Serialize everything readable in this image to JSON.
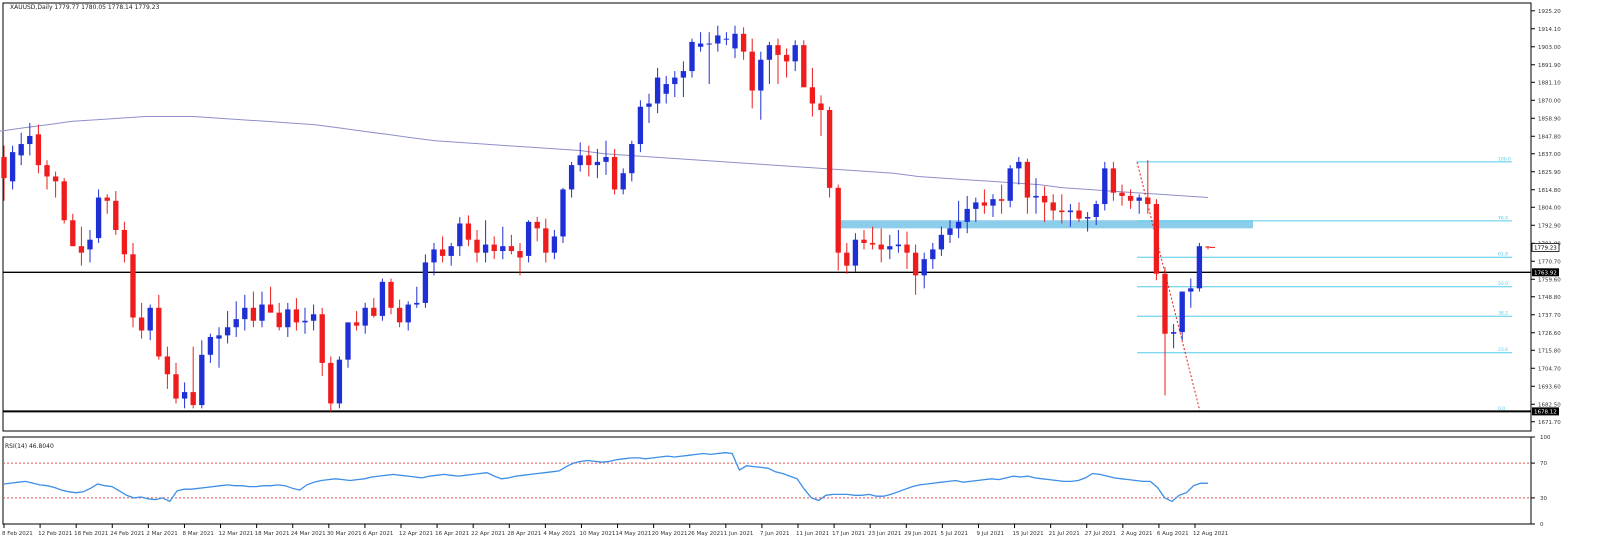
{
  "header": {
    "symbol_line": "XAUUSD,Daily  1779.77 1780.05 1778.14 1779.23",
    "rsi_label": "RSI(14) 46.8040"
  },
  "colors": {
    "bull": "#1f2fd6",
    "bear": "#ee1c1c",
    "ma": "#8f8fc9",
    "fib": "#55ccee",
    "zone": "#7ec8e8",
    "rsi_line": "#3c8ee8",
    "rsi_level": "#e05050",
    "grid_text": "#333333"
  },
  "chart_data": [
    {
      "type": "candlestick",
      "symbol": "XAUUSD",
      "timeframe": "Daily",
      "ohlc_readout": {
        "open": 1779.77,
        "high": 1780.05,
        "low": 1778.14,
        "close": 1779.23
      },
      "ylim": [
        1666.0,
        1930.0
      ],
      "y_ticks": [
        "1925.20",
        "1914.10",
        "1903.00",
        "1891.90",
        "1881.10",
        "1870.00",
        "1858.90",
        "1847.80",
        "1837.00",
        "1825.90",
        "1814.80",
        "1804.00",
        "1792.90",
        "1781.80",
        "1770.70",
        "1759.60",
        "1748.80",
        "1737.70",
        "1726.60",
        "1715.80",
        "1704.70",
        "1693.60",
        "1682.50",
        "1671.70"
      ],
      "x_ticks": [
        "8 Feb 2021",
        "12 Feb 2021",
        "18 Feb 2021",
        "24 Feb 2021",
        "2 Mar 2021",
        "8 Mar 2021",
        "12 Mar 2021",
        "18 Mar 2021",
        "24 Mar 2021",
        "30 Mar 2021",
        "6 Apr 2021",
        "12 Apr 2021",
        "16 Apr 2021",
        "22 Apr 2021",
        "28 Apr 2021",
        "4 May 2021",
        "10 May 2021",
        "14 May 2021",
        "20 May 2021",
        "26 May 2021",
        "1 Jun 2021",
        "7 Jun 2021",
        "11 Jun 2021",
        "17 Jun 2021",
        "23 Jun 2021",
        "29 Jun 2021",
        "5 Jul 2021",
        "9 Jul 2021",
        "15 Jul 2021",
        "21 Jul 2021",
        "27 Jul 2021",
        "2 Aug 2021",
        "6 Aug 2021",
        "12 Aug 2021"
      ],
      "candles": [
        [
          1835,
          1842,
          1808,
          1822
        ],
        [
          1820,
          1842,
          1815,
          1838
        ],
        [
          1836,
          1850,
          1830,
          1843
        ],
        [
          1843,
          1856,
          1836,
          1848
        ],
        [
          1849,
          1855,
          1825,
          1830
        ],
        [
          1830,
          1833,
          1815,
          1823
        ],
        [
          1823,
          1826,
          1810,
          1820
        ],
        [
          1820,
          1822,
          1794,
          1796
        ],
        [
          1796,
          1800,
          1780,
          1780
        ],
        [
          1780,
          1792,
          1768,
          1776
        ],
        [
          1778,
          1790,
          1770,
          1784
        ],
        [
          1785,
          1815,
          1782,
          1810
        ],
        [
          1810,
          1812,
          1800,
          1808
        ],
        [
          1808,
          1814,
          1787,
          1790
        ],
        [
          1790,
          1795,
          1770,
          1775
        ],
        [
          1775,
          1782,
          1730,
          1736
        ],
        [
          1736,
          1745,
          1723,
          1728
        ],
        [
          1728,
          1744,
          1722,
          1742
        ],
        [
          1742,
          1750,
          1710,
          1712
        ],
        [
          1712,
          1718,
          1692,
          1701
        ],
        [
          1701,
          1708,
          1683,
          1686
        ],
        [
          1686,
          1696,
          1680,
          1690
        ],
        [
          1690,
          1718,
          1680,
          1682
        ],
        [
          1682,
          1722,
          1680,
          1713
        ],
        [
          1713,
          1726,
          1708,
          1724
        ],
        [
          1723,
          1730,
          1705,
          1725
        ],
        [
          1725,
          1740,
          1720,
          1730
        ],
        [
          1730,
          1746,
          1724,
          1735
        ],
        [
          1735,
          1750,
          1728,
          1742
        ],
        [
          1742,
          1752,
          1730,
          1734
        ],
        [
          1734,
          1752,
          1730,
          1744
        ],
        [
          1744,
          1755,
          1740,
          1739
        ],
        [
          1739,
          1745,
          1728,
          1730
        ],
        [
          1730,
          1745,
          1724,
          1741
        ],
        [
          1741,
          1748,
          1728,
          1733
        ],
        [
          1733,
          1742,
          1726,
          1734
        ],
        [
          1734,
          1744,
          1728,
          1738
        ],
        [
          1738,
          1742,
          1700,
          1708
        ],
        [
          1708,
          1712,
          1678,
          1683
        ],
        [
          1683,
          1712,
          1680,
          1710
        ],
        [
          1710,
          1733,
          1705,
          1733
        ],
        [
          1733,
          1740,
          1728,
          1731
        ],
        [
          1731,
          1745,
          1726,
          1742
        ],
        [
          1742,
          1748,
          1736,
          1737
        ],
        [
          1737,
          1760,
          1734,
          1758
        ],
        [
          1758,
          1760,
          1738,
          1742
        ],
        [
          1742,
          1747,
          1730,
          1733
        ],
        [
          1733,
          1746,
          1728,
          1744
        ],
        [
          1744,
          1755,
          1742,
          1745
        ],
        [
          1745,
          1775,
          1742,
          1770
        ],
        [
          1770,
          1782,
          1762,
          1778
        ],
        [
          1778,
          1786,
          1770,
          1774
        ],
        [
          1774,
          1782,
          1768,
          1780
        ],
        [
          1780,
          1798,
          1774,
          1794
        ],
        [
          1794,
          1799,
          1780,
          1784
        ],
        [
          1784,
          1790,
          1770,
          1776
        ],
        [
          1776,
          1796,
          1770,
          1781
        ],
        [
          1781,
          1786,
          1772,
          1777
        ],
        [
          1777,
          1792,
          1772,
          1780
        ],
        [
          1780,
          1787,
          1775,
          1777
        ],
        [
          1777,
          1782,
          1762,
          1773
        ],
        [
          1774,
          1796,
          1770,
          1795
        ],
        [
          1795,
          1798,
          1783,
          1791
        ],
        [
          1791,
          1797,
          1770,
          1776
        ],
        [
          1776,
          1790,
          1772,
          1786
        ],
        [
          1786,
          1816,
          1782,
          1815
        ],
        [
          1815,
          1832,
          1810,
          1830
        ],
        [
          1830,
          1844,
          1826,
          1836
        ],
        [
          1836,
          1842,
          1823,
          1830
        ],
        [
          1830,
          1840,
          1822,
          1832
        ],
        [
          1832,
          1845,
          1824,
          1835
        ],
        [
          1835,
          1840,
          1812,
          1815
        ],
        [
          1815,
          1828,
          1812,
          1825
        ],
        [
          1825,
          1845,
          1820,
          1843
        ],
        [
          1843,
          1870,
          1838,
          1866
        ],
        [
          1866,
          1874,
          1856,
          1868
        ],
        [
          1868,
          1890,
          1862,
          1884
        ],
        [
          1874,
          1885,
          1868,
          1880
        ],
        [
          1880,
          1888,
          1872,
          1884
        ],
        [
          1884,
          1894,
          1872,
          1888
        ],
        [
          1888,
          1908,
          1884,
          1906
        ],
        [
          1903,
          1912,
          1900,
          1905
        ],
        [
          1905,
          1912,
          1880,
          1905
        ],
        [
          1905,
          1916,
          1900,
          1910
        ],
        [
          1908,
          1912,
          1904,
          1908
        ],
        [
          1902,
          1916,
          1896,
          1911
        ],
        [
          1911,
          1915,
          1895,
          1900
        ],
        [
          1900,
          1908,
          1865,
          1876
        ],
        [
          1876,
          1900,
          1858,
          1895
        ],
        [
          1895,
          1906,
          1880,
          1904
        ],
        [
          1904,
          1908,
          1880,
          1898
        ],
        [
          1898,
          1902,
          1884,
          1894
        ],
        [
          1894,
          1907,
          1888,
          1904
        ],
        [
          1904,
          1907,
          1879,
          1878
        ],
        [
          1878,
          1890,
          1860,
          1868
        ],
        [
          1868,
          1873,
          1848,
          1864
        ],
        [
          1864,
          1866,
          1810,
          1816
        ],
        [
          1816,
          1818,
          1765,
          1776
        ],
        [
          1776,
          1782,
          1763,
          1768
        ],
        [
          1768,
          1788,
          1764,
          1784
        ],
        [
          1784,
          1790,
          1778,
          1782
        ],
        [
          1782,
          1792,
          1778,
          1781
        ],
        [
          1781,
          1791,
          1770,
          1778
        ],
        [
          1778,
          1787,
          1772,
          1780
        ],
        [
          1780,
          1790,
          1776,
          1781
        ],
        [
          1781,
          1789,
          1766,
          1776
        ],
        [
          1776,
          1781,
          1750,
          1762
        ],
        [
          1762,
          1776,
          1754,
          1772
        ],
        [
          1772,
          1782,
          1766,
          1778
        ],
        [
          1778,
          1792,
          1774,
          1787
        ],
        [
          1787,
          1796,
          1782,
          1791
        ],
        [
          1791,
          1808,
          1785,
          1795
        ],
        [
          1795,
          1811,
          1788,
          1803
        ],
        [
          1803,
          1810,
          1795,
          1807
        ],
        [
          1807,
          1815,
          1800,
          1805
        ],
        [
          1805,
          1812,
          1798,
          1809
        ],
        [
          1809,
          1818,
          1800,
          1808
        ],
        [
          1808,
          1830,
          1804,
          1828
        ],
        [
          1828,
          1835,
          1818,
          1832
        ],
        [
          1832,
          1834,
          1800,
          1810
        ],
        [
          1810,
          1822,
          1800,
          1811
        ],
        [
          1811,
          1817,
          1795,
          1807
        ],
        [
          1807,
          1812,
          1796,
          1802
        ],
        [
          1802,
          1812,
          1794,
          1801
        ],
        [
          1801,
          1806,
          1792,
          1802
        ],
        [
          1802,
          1807,
          1795,
          1797
        ],
        [
          1797,
          1801,
          1789,
          1798
        ],
        [
          1798,
          1808,
          1793,
          1806
        ],
        [
          1806,
          1832,
          1802,
          1828
        ],
        [
          1828,
          1832,
          1808,
          1813
        ],
        [
          1813,
          1818,
          1805,
          1811
        ],
        [
          1811,
          1815,
          1803,
          1808
        ],
        [
          1808,
          1812,
          1800,
          1810
        ],
        [
          1810,
          1833,
          1800,
          1806
        ],
        [
          1806,
          1809,
          1759,
          1763
        ],
        [
          1763,
          1767,
          1688,
          1726
        ],
        [
          1726,
          1732,
          1717,
          1727
        ],
        [
          1727,
          1752,
          1722,
          1752
        ],
        [
          1752,
          1760,
          1742,
          1754
        ],
        [
          1754,
          1782,
          1752,
          1780
        ],
        [
          1779.77,
          1780.05,
          1778.14,
          1779.23
        ]
      ],
      "ma_line": [
        1851,
        1853,
        1855,
        1857,
        1858,
        1859,
        1860,
        1860,
        1860,
        1859,
        1858,
        1857,
        1856,
        1855,
        1853,
        1851,
        1849,
        1847,
        1845,
        1844,
        1843,
        1842,
        1841,
        1840,
        1839,
        1837,
        1836,
        1835,
        1834,
        1833,
        1832,
        1831,
        1830,
        1829,
        1828,
        1827,
        1826,
        1825,
        1823,
        1822,
        1821,
        1820,
        1819,
        1818,
        1816,
        1815,
        1814,
        1813,
        1812,
        1811,
        1810
      ],
      "horizontal_lines": [
        {
          "price": 1763.9,
          "label": "1763.92"
        },
        {
          "price": 1678.1,
          "label": "1678.12"
        }
      ],
      "current_price_label": "1779.23",
      "resistance_zone": {
        "from_price": 1791.0,
        "to_price": 1796.0
      },
      "fibonacci": {
        "high": 1832.0,
        "low": 1678.0,
        "levels": [
          {
            "label": "100.0",
            "price": 1832.0
          },
          {
            "label": "76.4",
            "price": 1795.6
          },
          {
            "label": "61.8",
            "price": 1773.2
          },
          {
            "label": "50.0",
            "price": 1755.0
          },
          {
            "label": "38.2",
            "price": 1736.8
          },
          {
            "label": "23.6",
            "price": 1714.3
          },
          {
            "label": "0.0",
            "price": 1678.0
          }
        ]
      }
    },
    {
      "type": "line",
      "name": "RSI(14)",
      "ylim": [
        0,
        100
      ],
      "y_ticks": [
        "100",
        "70",
        "30",
        "0"
      ],
      "levels": [
        70,
        30
      ],
      "values": [
        46,
        47,
        48,
        49,
        47,
        45,
        44,
        42,
        39,
        37,
        36,
        37,
        41,
        46,
        44,
        43,
        38,
        33,
        30,
        31,
        29,
        28,
        30,
        26,
        38,
        40,
        40,
        41,
        42,
        43,
        44,
        45,
        44,
        44,
        43,
        43,
        44,
        44,
        45,
        44,
        41,
        39,
        45,
        48,
        50,
        51,
        52,
        51,
        50,
        51,
        52,
        54,
        55,
        56,
        57,
        56,
        55,
        54,
        53,
        55,
        56,
        57,
        56,
        55,
        56,
        57,
        58,
        59,
        55,
        52,
        53,
        55,
        56,
        57,
        58,
        59,
        60,
        61,
        66,
        70,
        72,
        73,
        72,
        71,
        72,
        74,
        75,
        76,
        76,
        75,
        76,
        77,
        78,
        77,
        78,
        79,
        80,
        81,
        80,
        81,
        82,
        81,
        62,
        67,
        66,
        65,
        64,
        60,
        58,
        55,
        52,
        40,
        30,
        27,
        33,
        34,
        34,
        34,
        33,
        33,
        34,
        32,
        32,
        34,
        37,
        40,
        43,
        45,
        46,
        47,
        48,
        49,
        50,
        48,
        49,
        50,
        51,
        52,
        51,
        53,
        55,
        54,
        55,
        53,
        52,
        51,
        50,
        49,
        49,
        50,
        53,
        58,
        57,
        55,
        53,
        52,
        51,
        50,
        49,
        49,
        42,
        30,
        26,
        33,
        36,
        44,
        47,
        46.8
      ]
    }
  ]
}
